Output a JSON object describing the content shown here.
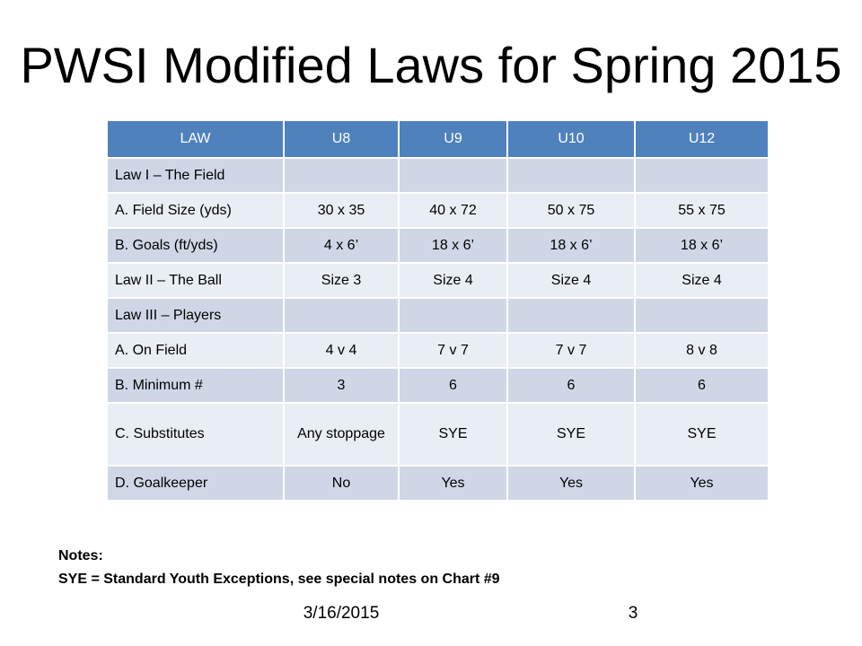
{
  "title": "PWSI Modified Laws for Spring 2015",
  "table": {
    "headers": [
      "LAW",
      "U8",
      "U9",
      "U10",
      "U12"
    ],
    "rows": [
      [
        "Law I – The Field",
        "",
        "",
        "",
        ""
      ],
      [
        "A.  Field Size (yds)",
        "30 x 35",
        "40 x 72",
        "50 x 75",
        "55 x 75"
      ],
      [
        "B.  Goals (ft/yds)",
        "4 x 6’",
        "18 x 6’",
        "18 x 6’",
        "18 x 6’"
      ],
      [
        "Law II – The Ball",
        "Size 3",
        "Size 4",
        "Size 4",
        "Size 4"
      ],
      [
        "Law III – Players",
        "",
        "",
        "",
        ""
      ],
      [
        "A.  On Field",
        "4 v 4",
        "7 v 7",
        "7 v 7",
        "8 v 8"
      ],
      [
        "B.  Minimum #",
        "3",
        "6",
        "6",
        "6"
      ],
      [
        "C.  Substitutes",
        "Any stoppage",
        "SYE",
        "SYE",
        "SYE"
      ],
      [
        "D.  Goalkeeper",
        "No",
        "Yes",
        "Yes",
        "Yes"
      ]
    ]
  },
  "notes": {
    "heading": "Notes:",
    "line": "SYE = Standard Youth Exceptions, see special notes on Chart #9"
  },
  "footer": {
    "date": "3/16/2015",
    "page_number": "3"
  },
  "colors": {
    "header_bg": "#4f81bd",
    "row_dark": "#cfd7e6",
    "row_light": "#e9edf4"
  }
}
